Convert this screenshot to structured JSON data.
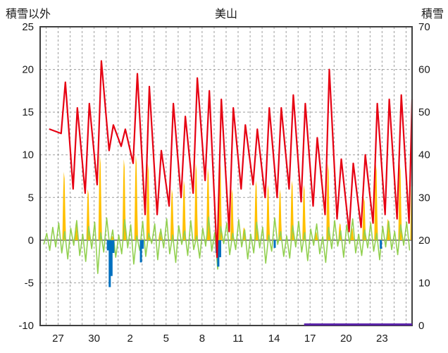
{
  "header": {
    "left_axis_title": "積雪以外",
    "station_title": "美山",
    "right_axis_title": "積雪"
  },
  "chart_data": {
    "type": "line",
    "title": "美山",
    "x_domain": [
      -1.5,
      29.5
    ],
    "x_ticks": [
      {
        "d": 0,
        "label": "27"
      },
      {
        "d": 3,
        "label": "30"
      },
      {
        "d": 6,
        "label": "2"
      },
      {
        "d": 9,
        "label": "5"
      },
      {
        "d": 12,
        "label": "8"
      },
      {
        "d": 15,
        "label": "11"
      },
      {
        "d": 18,
        "label": "14"
      },
      {
        "d": 21,
        "label": "17"
      },
      {
        "d": 24,
        "label": "20"
      },
      {
        "d": 27,
        "label": "23"
      }
    ],
    "left_axis": {
      "title": "積雪以外",
      "range": [
        -10,
        25
      ],
      "ticks": [
        -10,
        -5,
        0,
        5,
        10,
        15,
        20,
        25
      ]
    },
    "right_axis": {
      "title": "積雪",
      "range": [
        0,
        70
      ],
      "ticks": [
        0,
        10,
        20,
        30,
        40,
        50,
        60,
        70
      ]
    },
    "grid": {
      "color": "#9e9e9e",
      "zero_line_color": "#7f7f7f",
      "border_color": "#404040"
    },
    "series": {
      "temperature": {
        "color": "#e60012",
        "start": [
          -0.7,
          13
        ],
        "end": [
          29.85,
          6.3
        ],
        "daily_min_max": [
          [
            0,
            12.5,
            18.5
          ],
          [
            1,
            6,
            15.5
          ],
          [
            2,
            5.5,
            16
          ],
          [
            3,
            6.5,
            21
          ],
          [
            4,
            10.5,
            13.5
          ],
          [
            5,
            11,
            13
          ],
          [
            6,
            9,
            19.5
          ],
          [
            7,
            3,
            18
          ],
          [
            8,
            3,
            10.5
          ],
          [
            9,
            4,
            16
          ],
          [
            10,
            5,
            14.5
          ],
          [
            11,
            5.5,
            19
          ],
          [
            12,
            7,
            17.5
          ],
          [
            13,
            -2,
            16.5
          ],
          [
            14,
            1,
            15.5
          ],
          [
            15,
            6,
            13.5
          ],
          [
            16,
            6.5,
            13
          ],
          [
            17,
            5,
            15.5
          ],
          [
            18,
            5,
            15.5
          ],
          [
            19,
            6,
            17
          ],
          [
            20,
            4.5,
            16
          ],
          [
            21,
            4,
            12
          ],
          [
            22,
            3,
            20
          ],
          [
            23,
            2.5,
            9.5
          ],
          [
            24,
            1,
            9
          ],
          [
            25,
            1.5,
            10
          ],
          [
            26,
            2,
            16
          ],
          [
            27,
            3,
            16.5
          ],
          [
            28,
            2.5,
            17
          ],
          [
            29,
            2,
            16.5
          ]
        ]
      },
      "sunshine": {
        "color": "#ffc000",
        "daily_peaks": [
          [
            0,
            8
          ],
          [
            1,
            2
          ],
          [
            2,
            6
          ],
          [
            3,
            10
          ],
          [
            4,
            0.5
          ],
          [
            5,
            9.5
          ],
          [
            6,
            10
          ],
          [
            7,
            9
          ],
          [
            8,
            1
          ],
          [
            9,
            6
          ],
          [
            10,
            7
          ],
          [
            11,
            9
          ],
          [
            12,
            8.5
          ],
          [
            13,
            9.5
          ],
          [
            14,
            6
          ],
          [
            15,
            1.5
          ],
          [
            16,
            7
          ],
          [
            17,
            6.5
          ],
          [
            18,
            6
          ],
          [
            19,
            7
          ],
          [
            20,
            6.5
          ],
          [
            21,
            1
          ],
          [
            22,
            9
          ],
          [
            23,
            2
          ],
          [
            24,
            1.5
          ],
          [
            25,
            5
          ],
          [
            26,
            9
          ],
          [
            27,
            2.5
          ],
          [
            28,
            9
          ],
          [
            29,
            8
          ]
        ]
      },
      "wind": {
        "color": "#92d050",
        "start_d": -1.2,
        "step": 0.25,
        "values": [
          -0.5,
          0.8,
          -1.2,
          1.5,
          -0.8,
          2.0,
          -1.5,
          1.0,
          -2.2,
          1.4,
          -0.6,
          2.3,
          -1.8,
          0.7,
          -2.5,
          1.6,
          -1.0,
          2.1,
          -3.9,
          0.9,
          -1.4,
          2.6,
          -0.7,
          1.2,
          -2.0,
          0.6,
          -1.6,
          2.4,
          -0.9,
          1.8,
          -2.8,
          0.5,
          -1.2,
          2.2,
          -1.9,
          0.8,
          -0.4,
          1.9,
          -2.3,
          1.3,
          -0.9,
          2.5,
          -1.6,
          0.6,
          -2.6,
          1.7,
          -0.5,
          1.1,
          -1.8,
          2.3,
          -1.1,
          0.5,
          -2.1,
          1.4,
          -0.7,
          2.7,
          -1.3,
          0.9,
          -3.4,
          1.6,
          -0.4,
          2.0,
          -1.7,
          0.8,
          -1.1,
          2.4,
          -0.8,
          1.2,
          -2.2,
          0.7,
          -1.5,
          2.1,
          -0.9,
          1.5,
          -2.7,
          0.6,
          -1.3,
          2.6,
          -0.5,
          1.0,
          -1.9,
          0.5,
          -2.1,
          1.7,
          -0.8,
          2.2,
          -1.4,
          0.9,
          -2.4,
          1.3,
          -0.6,
          1.9,
          -1.6,
          0.4,
          -2.6,
          1.5,
          -1.0,
          2.3,
          -0.7,
          1.1,
          -2.0,
          1.8,
          -0.4,
          2.5,
          -1.5,
          0.7,
          -1.8,
          1.2,
          -0.9,
          2.0,
          -1.3,
          0.8,
          -2.3,
          1.6,
          -0.8,
          2.2,
          -1.1,
          1.0,
          -1.7,
          1.8,
          -0.6,
          2.1,
          -1.2
        ]
      },
      "precipitation": {
        "color": "#0070c0",
        "bars": [
          [
            4.15,
            -1.2
          ],
          [
            4.3,
            -5.5
          ],
          [
            4.45,
            -4.2
          ],
          [
            4.6,
            -1.5
          ],
          [
            6.9,
            -2.6
          ],
          [
            7.05,
            -1.0
          ],
          [
            13.2,
            -1.5
          ],
          [
            13.35,
            -3.1
          ],
          [
            13.5,
            -2.0
          ],
          [
            18.05,
            -0.9
          ],
          [
            26.9,
            -1.0
          ]
        ]
      },
      "snow_depth": {
        "color": "#5a24a8",
        "axis": "right",
        "from_d": 20.5,
        "to_d": 29.5,
        "value": 0
      }
    }
  }
}
